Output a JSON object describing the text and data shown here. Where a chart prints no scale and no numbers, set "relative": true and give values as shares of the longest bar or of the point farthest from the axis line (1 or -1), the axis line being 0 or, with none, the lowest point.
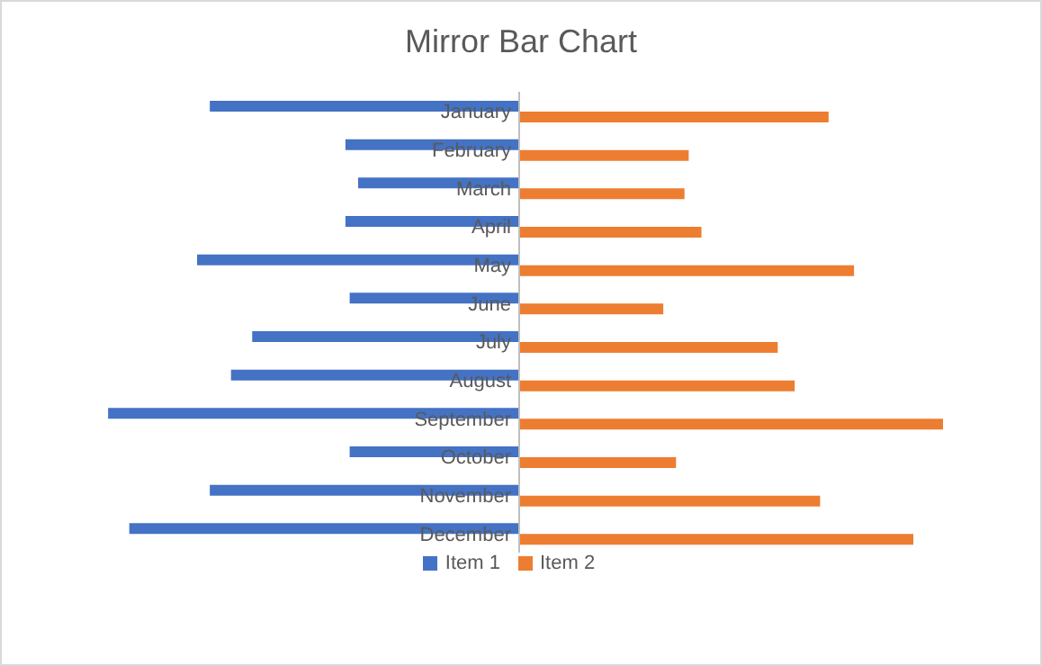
{
  "chart_data": {
    "type": "bar",
    "title": "Mirror Bar Chart",
    "orientation": "horizontal",
    "relative": true,
    "categories": [
      "January",
      "February",
      "March",
      "April",
      "May",
      "June",
      "July",
      "August",
      "September",
      "October",
      "November",
      "December"
    ],
    "series": [
      {
        "name": "Item 1",
        "color": "#4472c4",
        "values": [
          -0.73,
          -0.41,
          -0.38,
          -0.41,
          -0.76,
          -0.4,
          -0.63,
          -0.68,
          -0.97,
          -0.4,
          -0.73,
          -0.92
        ]
      },
      {
        "name": "Item 2",
        "color": "#ed7d31",
        "values": [
          0.73,
          0.4,
          0.39,
          0.43,
          0.79,
          0.34,
          0.61,
          0.65,
          1,
          0.37,
          0.71,
          0.93
        ]
      }
    ],
    "legend": "bottom"
  }
}
